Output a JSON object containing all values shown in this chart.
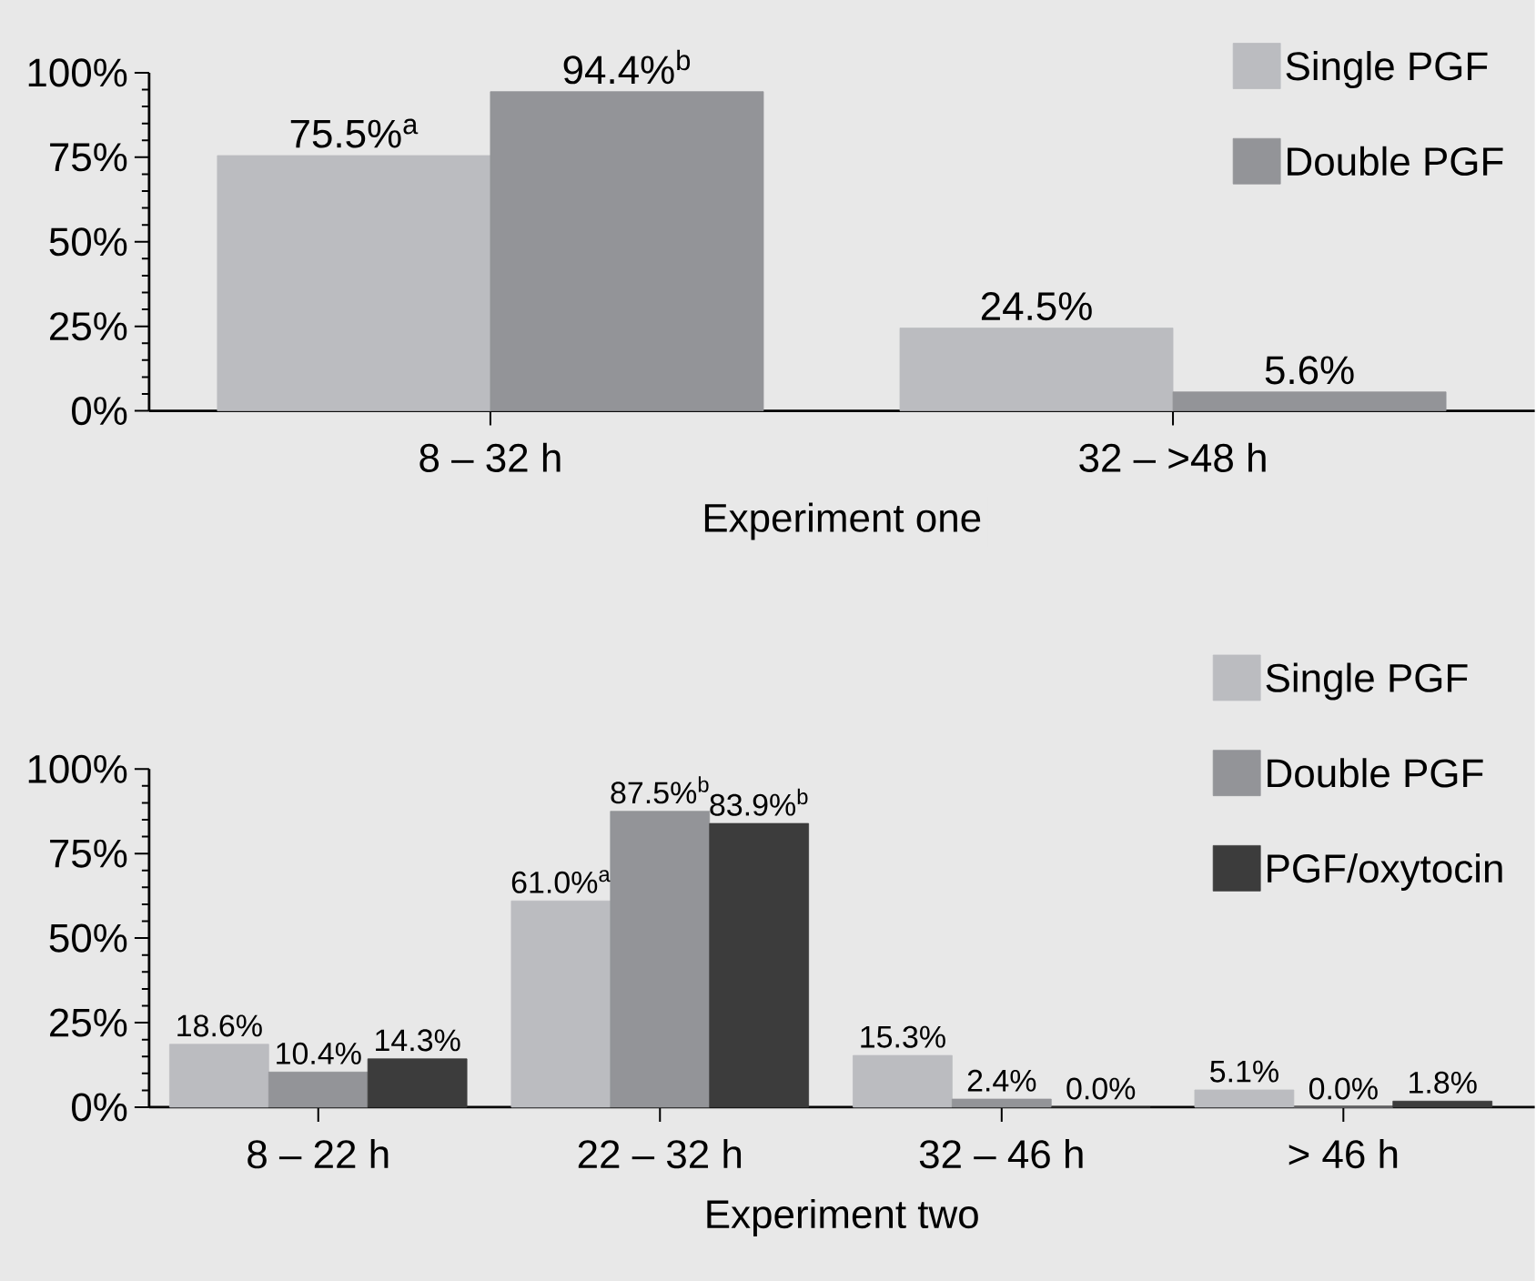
{
  "chart_data": [
    {
      "type": "bar",
      "categories": [
        "8 – 32 h",
        "32 – >48 h"
      ],
      "xlabel": "Experiment one",
      "ylim": [
        0,
        100
      ],
      "yticks": [
        {
          "value": 0,
          "label": "0%"
        },
        {
          "value": 25,
          "label": "25%"
        },
        {
          "value": 50,
          "label": "50%"
        },
        {
          "value": 75,
          "label": "75%"
        },
        {
          "value": 100,
          "label": "100%"
        }
      ],
      "legend": "top right",
      "series": [
        {
          "name": "Single PGF",
          "color": "#bbbcc0",
          "values": [
            75.5,
            24.5
          ],
          "value_labels": [
            "75.5%$^{a}$",
            "24.5%"
          ]
        },
        {
          "name": "Double PGF",
          "color": "#939498",
          "values": [
            94.4,
            5.6
          ],
          "value_labels": [
            "94.4%$^{b}$",
            "5.6%"
          ]
        }
      ]
    },
    {
      "type": "bar",
      "categories": [
        "8 – 22 h",
        "22 – 32 h",
        "32 – 46 h",
        "> 46 h"
      ],
      "xlabel": "Experiment two",
      "ylim": [
        0,
        100
      ],
      "yticks": [
        {
          "value": 0,
          "label": "0%"
        },
        {
          "value": 25,
          "label": "25%"
        },
        {
          "value": 50,
          "label": "50%"
        },
        {
          "value": 75,
          "label": "75%"
        },
        {
          "value": 100,
          "label": "100%"
        }
      ],
      "legend": "top right",
      "series": [
        {
          "name": "Single PGF",
          "color": "#bbbcc0",
          "values": [
            18.6,
            61.0,
            15.3,
            5.1
          ],
          "value_labels": [
            "18.6%",
            "61.0%$^{a}$",
            "15.3%",
            "5.1%"
          ]
        },
        {
          "name": "Double PGF",
          "color": "#939498",
          "values": [
            10.4,
            87.5,
            2.4,
            0.0
          ],
          "value_labels": [
            "10.4%",
            "87.5%$^{b}$",
            "2.4%",
            "0.0%"
          ]
        },
        {
          "name": "PGF/oxytocin",
          "color": "#3c3c3c",
          "values": [
            14.3,
            83.9,
            0.0,
            1.8
          ],
          "value_labels": [
            "14.3%",
            "83.9%$^{b}$",
            "0.0%",
            "1.8%"
          ]
        }
      ]
    }
  ]
}
